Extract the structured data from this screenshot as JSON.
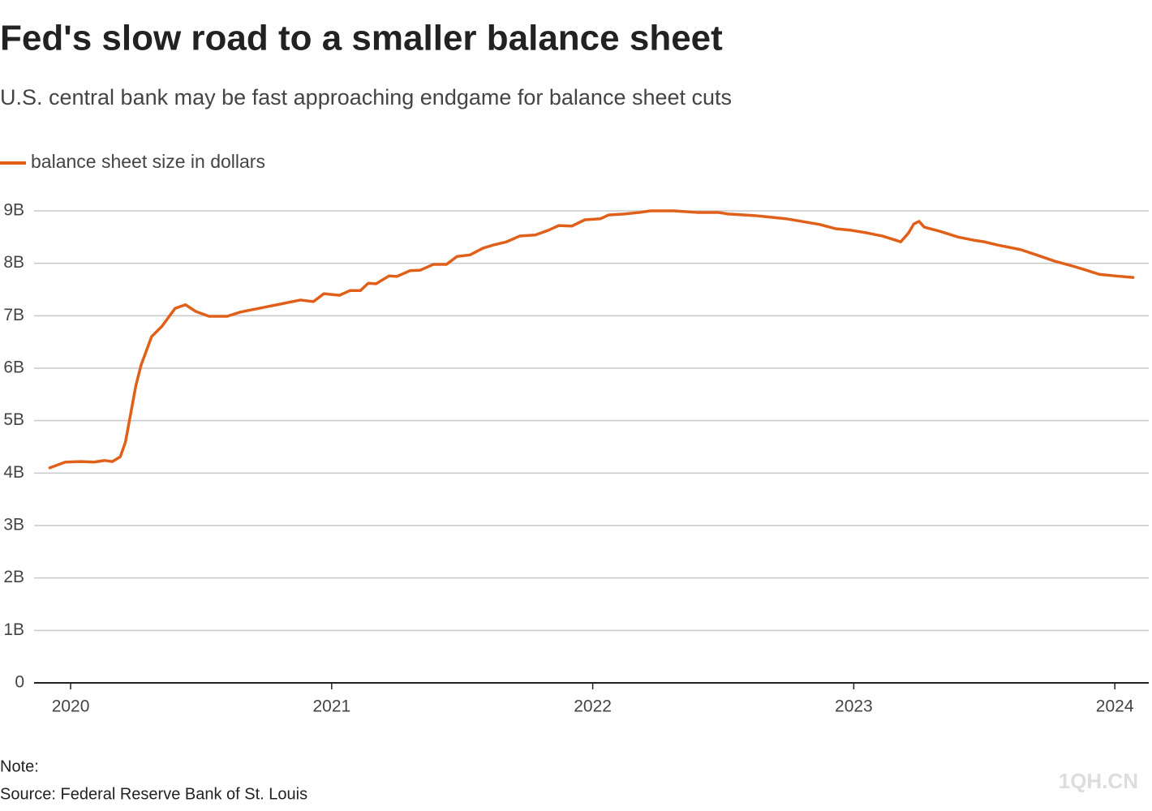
{
  "chart_data": {
    "type": "line",
    "title": "Fed's slow road to a smaller balance sheet",
    "subtitle": "U.S. central bank may be fast approaching endgame for balance sheet cuts",
    "note": "Note:",
    "source": "Source: Federal Reserve Bank of St. Louis",
    "watermark": "1QH.CN",
    "x": [
      2019.92,
      2019.98,
      2020.04,
      2020.09,
      2020.13,
      2020.16,
      2020.19,
      2020.21,
      2020.23,
      2020.25,
      2020.27,
      2020.31,
      2020.35,
      2020.4,
      2020.44,
      2020.48,
      2020.53,
      2020.6,
      2020.65,
      2020.72,
      2020.8,
      2020.88,
      2020.93,
      2020.97,
      2021.03,
      2021.07,
      2021.11,
      2021.14,
      2021.17,
      2021.22,
      2021.25,
      2021.3,
      2021.34,
      2021.39,
      2021.44,
      2021.48,
      2021.53,
      2021.58,
      2021.62,
      2021.67,
      2021.72,
      2021.78,
      2021.83,
      2021.87,
      2021.92,
      2021.97,
      2022.03,
      2022.06,
      2022.12,
      2022.18,
      2022.22,
      2022.31,
      2022.4,
      2022.48,
      2022.52,
      2022.62,
      2022.68,
      2022.74,
      2022.8,
      2022.87,
      2022.93,
      2022.99,
      2023.05,
      2023.11,
      2023.18,
      2023.21,
      2023.23,
      2023.25,
      2023.27,
      2023.33,
      2023.4,
      2023.46,
      2023.5,
      2023.55,
      2023.64,
      2023.7,
      2023.77,
      2023.83,
      2023.89,
      2023.94,
      2024.0,
      2024.07
    ],
    "series": [
      {
        "name": "balance sheet size in dollars",
        "color": "#e0601a",
        "values": [
          4.1,
          4.21,
          4.22,
          4.21,
          4.24,
          4.22,
          4.31,
          4.59,
          5.13,
          5.67,
          6.06,
          6.6,
          6.8,
          7.14,
          7.21,
          7.08,
          6.99,
          6.99,
          7.07,
          7.14,
          7.22,
          7.3,
          7.27,
          7.42,
          7.39,
          7.48,
          7.48,
          7.62,
          7.61,
          7.76,
          7.75,
          7.86,
          7.87,
          7.98,
          7.98,
          8.13,
          8.16,
          8.29,
          8.35,
          8.41,
          8.52,
          8.54,
          8.63,
          8.72,
          8.71,
          8.83,
          8.85,
          8.92,
          8.94,
          8.97,
          9.0,
          9.0,
          8.97,
          8.97,
          8.94,
          8.91,
          8.88,
          8.85,
          8.8,
          8.74,
          8.66,
          8.63,
          8.58,
          8.52,
          8.41,
          8.58,
          8.75,
          8.8,
          8.69,
          8.61,
          8.5,
          8.44,
          8.41,
          8.35,
          8.26,
          8.16,
          8.04,
          7.96,
          7.87,
          7.79,
          7.76,
          7.73
        ]
      }
    ],
    "xlim": [
      2019.86,
      2024.13
    ],
    "xticks": [
      2020,
      2021,
      2022,
      2023,
      2024
    ],
    "ylim": [
      0,
      9
    ],
    "yticks": [
      0,
      {
        "value": 1,
        "label": "1B"
      },
      {
        "value": 2,
        "label": "2B"
      },
      {
        "value": 3,
        "label": "3B"
      },
      {
        "value": 4,
        "label": "4B"
      },
      {
        "value": 5,
        "label": "5B"
      },
      {
        "value": 6,
        "label": "6B"
      },
      {
        "value": 7,
        "label": "7B"
      },
      {
        "value": 8,
        "label": "8B"
      },
      {
        "value": 9,
        "label": "9B"
      }
    ],
    "grid": true
  }
}
